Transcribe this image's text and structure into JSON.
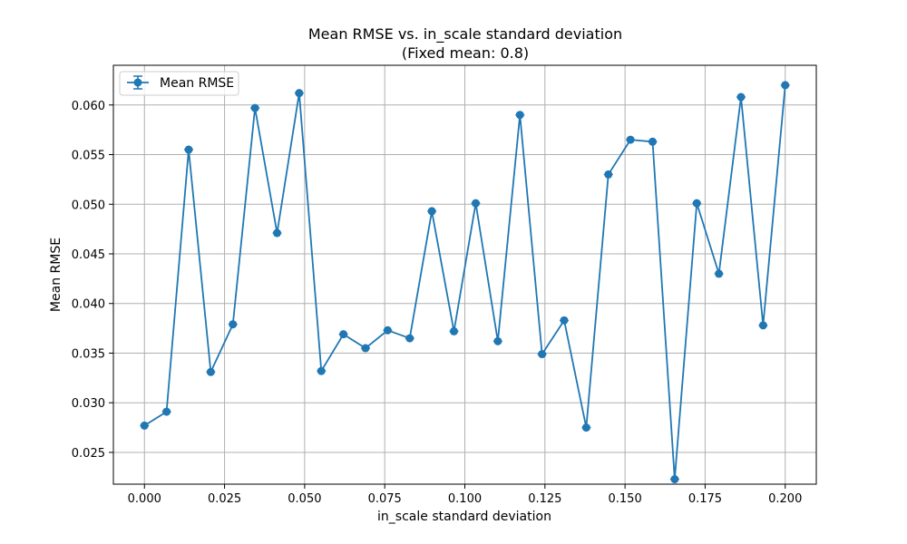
{
  "chart_data": {
    "type": "line",
    "title": "Mean RMSE vs. in_scale standard deviation",
    "subtitle": "(Fixed mean: 0.8)",
    "xlabel": "in_scale standard deviation",
    "ylabel": "Mean RMSE",
    "xlim": [
      -0.0097,
      0.2097
    ],
    "ylim": [
      0.0218,
      0.064
    ],
    "xticks": [
      "0.000",
      "0.025",
      "0.050",
      "0.075",
      "0.100",
      "0.125",
      "0.150",
      "0.175",
      "0.200"
    ],
    "yticks": [
      "0.025",
      "0.030",
      "0.035",
      "0.040",
      "0.045",
      "0.050",
      "0.055",
      "0.060"
    ],
    "grid": true,
    "legend_position": "top-left",
    "series": [
      {
        "name": "Mean RMSE",
        "color": "#1f77b4",
        "marker": "circle",
        "error_bars": true,
        "x": [
          0.0,
          0.0069,
          0.0138,
          0.0207,
          0.0276,
          0.0345,
          0.0414,
          0.0483,
          0.0552,
          0.0621,
          0.069,
          0.0759,
          0.0828,
          0.0897,
          0.0966,
          0.1034,
          0.1103,
          0.1172,
          0.1241,
          0.131,
          0.1379,
          0.1448,
          0.1517,
          0.1586,
          0.1655,
          0.1724,
          0.1793,
          0.1862,
          0.1931,
          0.2
        ],
        "y": [
          0.0277,
          0.0291,
          0.0555,
          0.0331,
          0.0379,
          0.0597,
          0.0471,
          0.0612,
          0.0332,
          0.0369,
          0.0355,
          0.0373,
          0.0365,
          0.0493,
          0.0372,
          0.0501,
          0.0362,
          0.059,
          0.0349,
          0.0383,
          0.0275,
          0.053,
          0.0565,
          0.0563,
          0.0223,
          0.0501,
          0.043,
          0.0608,
          0.0378,
          0.062
        ]
      }
    ]
  }
}
